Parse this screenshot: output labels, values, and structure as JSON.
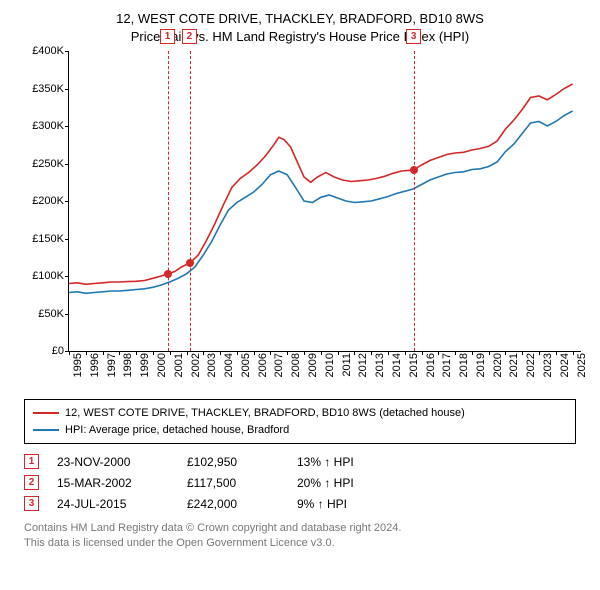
{
  "title_line1": "12, WEST COTE DRIVE, THACKLEY, BRADFORD, BD10 8WS",
  "title_line2": "Price paid vs. HM Land Registry's House Price Index (HPI)",
  "chart": {
    "type": "line",
    "background_color": "#ffffff",
    "x_range": [
      1995,
      2025.5
    ],
    "y_range": [
      0,
      400000
    ],
    "y_ticks": [
      0,
      50000,
      100000,
      150000,
      200000,
      250000,
      300000,
      350000,
      400000
    ],
    "y_tick_labels": [
      "£0",
      "£50K",
      "£100K",
      "£150K",
      "£200K",
      "£250K",
      "£300K",
      "£350K",
      "£400K"
    ],
    "x_ticks": [
      1995,
      1996,
      1997,
      1998,
      1999,
      2000,
      2001,
      2002,
      2003,
      2004,
      2005,
      2006,
      2007,
      2008,
      2009,
      2010,
      2011,
      2012,
      2013,
      2014,
      2015,
      2016,
      2017,
      2018,
      2019,
      2020,
      2021,
      2022,
      2023,
      2024,
      2025
    ],
    "x_tick_labels": [
      "1995",
      "1996",
      "1997",
      "1998",
      "1999",
      "2000",
      "2001",
      "2002",
      "2003",
      "2004",
      "2005",
      "2006",
      "2007",
      "2008",
      "2009",
      "2010",
      "2011",
      "2012",
      "2013",
      "2014",
      "2015",
      "2016",
      "2017",
      "2018",
      "2019",
      "2020",
      "2021",
      "2022",
      "2023",
      "2024",
      "2025"
    ],
    "series_price": {
      "color": "#d62728",
      "width": 1.6,
      "data": [
        [
          1995.0,
          90000
        ],
        [
          1995.5,
          91000
        ],
        [
          1996.0,
          89000
        ],
        [
          1996.5,
          90000
        ],
        [
          1997.0,
          91000
        ],
        [
          1997.5,
          92000
        ],
        [
          1998.0,
          92000
        ],
        [
          1998.5,
          92500
        ],
        [
          1999.0,
          93000
        ],
        [
          1999.5,
          94000
        ],
        [
          2000.0,
          97000
        ],
        [
          2000.5,
          100000
        ],
        [
          2000.9,
          102950
        ],
        [
          2001.3,
          106000
        ],
        [
          2001.7,
          112000
        ],
        [
          2002.2,
          117500
        ],
        [
          2002.7,
          128000
        ],
        [
          2003.2,
          148000
        ],
        [
          2003.7,
          170000
        ],
        [
          2004.2,
          195000
        ],
        [
          2004.7,
          218000
        ],
        [
          2005.2,
          230000
        ],
        [
          2005.7,
          238000
        ],
        [
          2006.2,
          248000
        ],
        [
          2006.7,
          260000
        ],
        [
          2007.2,
          275000
        ],
        [
          2007.5,
          285000
        ],
        [
          2007.8,
          282000
        ],
        [
          2008.2,
          272000
        ],
        [
          2008.6,
          252000
        ],
        [
          2009.0,
          232000
        ],
        [
          2009.4,
          225000
        ],
        [
          2009.8,
          232000
        ],
        [
          2010.3,
          238000
        ],
        [
          2010.8,
          232000
        ],
        [
          2011.3,
          228000
        ],
        [
          2011.8,
          226000
        ],
        [
          2012.3,
          227000
        ],
        [
          2012.8,
          228000
        ],
        [
          2013.3,
          230000
        ],
        [
          2013.8,
          233000
        ],
        [
          2014.3,
          237000
        ],
        [
          2014.8,
          240000
        ],
        [
          2015.3,
          241000
        ],
        [
          2015.56,
          242000
        ],
        [
          2016.0,
          248000
        ],
        [
          2016.5,
          254000
        ],
        [
          2017.0,
          258000
        ],
        [
          2017.5,
          262000
        ],
        [
          2018.0,
          264000
        ],
        [
          2018.5,
          265000
        ],
        [
          2019.0,
          268000
        ],
        [
          2019.5,
          270000
        ],
        [
          2020.0,
          273000
        ],
        [
          2020.5,
          280000
        ],
        [
          2021.0,
          296000
        ],
        [
          2021.5,
          308000
        ],
        [
          2022.0,
          322000
        ],
        [
          2022.5,
          338000
        ],
        [
          2023.0,
          340000
        ],
        [
          2023.5,
          335000
        ],
        [
          2024.0,
          342000
        ],
        [
          2024.5,
          350000
        ],
        [
          2025.0,
          356000
        ]
      ]
    },
    "series_hpi": {
      "color": "#1f77b4",
      "width": 1.6,
      "data": [
        [
          1995.0,
          78000
        ],
        [
          1995.5,
          79000
        ],
        [
          1996.0,
          77000
        ],
        [
          1996.5,
          78000
        ],
        [
          1997.0,
          79000
        ],
        [
          1997.5,
          80000
        ],
        [
          1998.0,
          80000
        ],
        [
          1998.5,
          81000
        ],
        [
          1999.0,
          82000
        ],
        [
          1999.5,
          83000
        ],
        [
          2000.0,
          85000
        ],
        [
          2000.5,
          88000
        ],
        [
          2001.0,
          92000
        ],
        [
          2001.5,
          97000
        ],
        [
          2002.0,
          103000
        ],
        [
          2002.5,
          112000
        ],
        [
          2003.0,
          128000
        ],
        [
          2003.5,
          146000
        ],
        [
          2004.0,
          168000
        ],
        [
          2004.5,
          188000
        ],
        [
          2005.0,
          198000
        ],
        [
          2005.5,
          205000
        ],
        [
          2006.0,
          212000
        ],
        [
          2006.5,
          222000
        ],
        [
          2007.0,
          235000
        ],
        [
          2007.5,
          240000
        ],
        [
          2008.0,
          235000
        ],
        [
          2008.5,
          218000
        ],
        [
          2009.0,
          200000
        ],
        [
          2009.5,
          198000
        ],
        [
          2010.0,
          205000
        ],
        [
          2010.5,
          208000
        ],
        [
          2011.0,
          204000
        ],
        [
          2011.5,
          200000
        ],
        [
          2012.0,
          198000
        ],
        [
          2012.5,
          199000
        ],
        [
          2013.0,
          200000
        ],
        [
          2013.5,
          203000
        ],
        [
          2014.0,
          206000
        ],
        [
          2014.5,
          210000
        ],
        [
          2015.0,
          213000
        ],
        [
          2015.5,
          216000
        ],
        [
          2016.0,
          222000
        ],
        [
          2016.5,
          228000
        ],
        [
          2017.0,
          232000
        ],
        [
          2017.5,
          236000
        ],
        [
          2018.0,
          238000
        ],
        [
          2018.5,
          239000
        ],
        [
          2019.0,
          242000
        ],
        [
          2019.5,
          243000
        ],
        [
          2020.0,
          246000
        ],
        [
          2020.5,
          252000
        ],
        [
          2021.0,
          266000
        ],
        [
          2021.5,
          276000
        ],
        [
          2022.0,
          290000
        ],
        [
          2022.5,
          304000
        ],
        [
          2023.0,
          306000
        ],
        [
          2023.5,
          300000
        ],
        [
          2024.0,
          306000
        ],
        [
          2024.5,
          314000
        ],
        [
          2025.0,
          320000
        ]
      ]
    },
    "event_lines": [
      {
        "x": 2000.9,
        "color": "#d62728",
        "label": "1"
      },
      {
        "x": 2002.2,
        "color": "#d62728",
        "label": "2"
      },
      {
        "x": 2015.56,
        "color": "#d62728",
        "label": "3"
      }
    ],
    "event_points": [
      {
        "x": 2000.9,
        "y": 102950,
        "color": "#d62728"
      },
      {
        "x": 2002.2,
        "y": 117500,
        "color": "#d62728"
      },
      {
        "x": 2015.56,
        "y": 242000,
        "color": "#d62728"
      }
    ]
  },
  "legend": {
    "row1": {
      "color": "#d62728",
      "label": "12, WEST COTE DRIVE, THACKLEY, BRADFORD, BD10 8WS (detached house)"
    },
    "row2": {
      "color": "#1f77b4",
      "label": "HPI: Average price, detached house, Bradford"
    }
  },
  "events": [
    {
      "num": "1",
      "date": "23-NOV-2000",
      "price": "£102,950",
      "delta": "13% ↑ HPI"
    },
    {
      "num": "2",
      "date": "15-MAR-2002",
      "price": "£117,500",
      "delta": "20% ↑ HPI"
    },
    {
      "num": "3",
      "date": "24-JUL-2015",
      "price": "£242,000",
      "delta": "9% ↑ HPI"
    }
  ],
  "footer_line1": "Contains HM Land Registry data © Crown copyright and database right 2024.",
  "footer_line2": "This data is licensed under the Open Government Licence v3.0."
}
